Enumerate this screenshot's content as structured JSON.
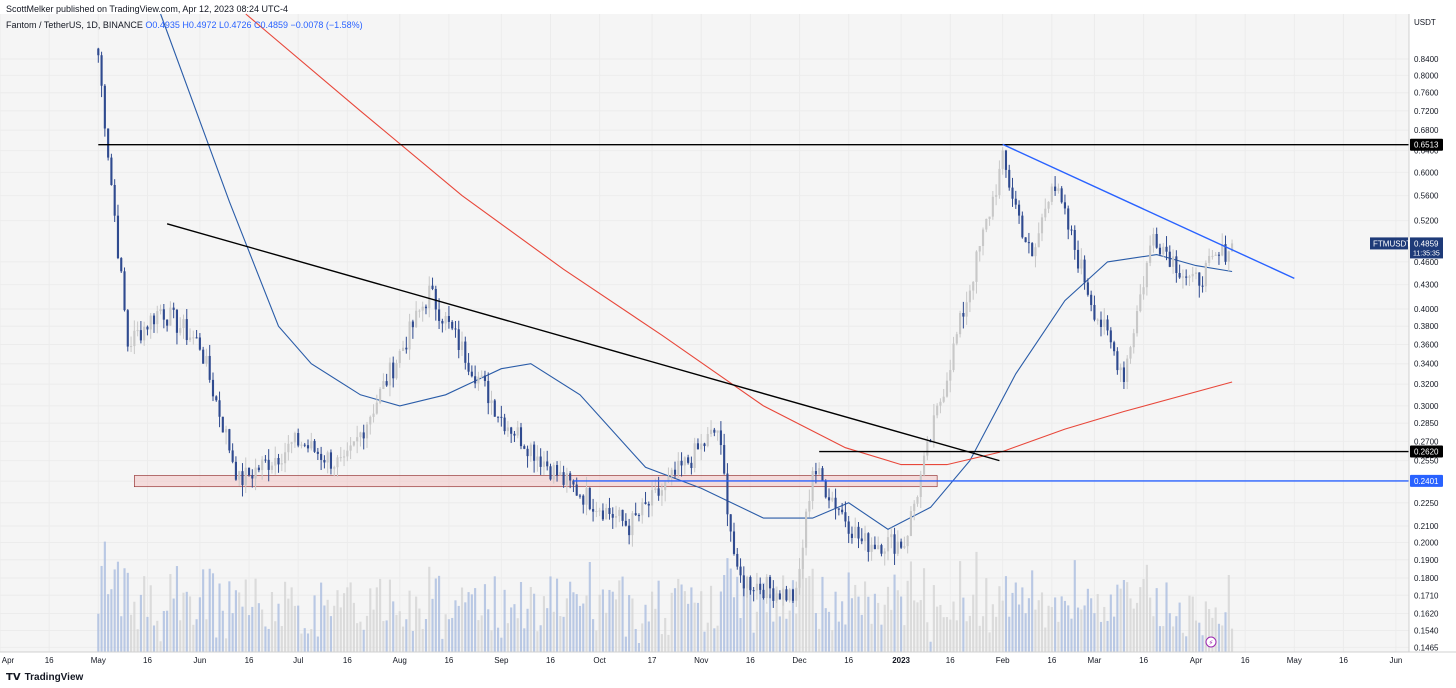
{
  "header": {
    "publisher": "ScottMelker published on TradingView.com, Apr 12, 2023 08:24 UTC-4",
    "symbol": "Fantom / TetherUS, 1D, BINANCE",
    "ohlc": "O0.4935 H0.4972 L0.4726 C0.4859",
    "change": "−0.0078 (−1.58%)"
  },
  "footer": {
    "brand": "TradingView",
    "logo": "tradingview-logo-icon"
  },
  "colors": {
    "up": "#c8c8c8",
    "down": "#2f4a8f",
    "ma_fast": "#2a5ca8",
    "ma_slow": "#e8473a",
    "trendline": "#2962ff",
    "level": "#000000",
    "support_zone": "#f3c4c4"
  },
  "chart_data": {
    "type": "candlestick",
    "symbol": "FTMUSDT",
    "y_axis_unit": "USDT",
    "y_scale": "log",
    "ylim": [
      0.1445,
      0.96
    ],
    "y_ticks": [
      "0.8400",
      "0.8000",
      "0.7600",
      "0.7200",
      "0.6800",
      "0.6400",
      "0.6000",
      "0.5600",
      "0.5200",
      "0.4600",
      "0.4300",
      "0.4000",
      "0.3800",
      "0.3600",
      "0.3400",
      "0.3200",
      "0.3000",
      "0.2850",
      "0.2700",
      "0.2550",
      "0.2400",
      "0.2250",
      "0.2100",
      "0.2000",
      "0.1900",
      "0.1800",
      "0.1710",
      "0.1620",
      "0.1540",
      "0.1465"
    ],
    "x_ticks": [
      "Apr",
      "16",
      "May",
      "16",
      "Jun",
      "16",
      "Jul",
      "16",
      "Aug",
      "16",
      "Sep",
      "16",
      "Oct",
      "17",
      "Nov",
      "16",
      "Dec",
      "16",
      "2023",
      "16",
      "Feb",
      "16",
      "Mar",
      "16",
      "Apr",
      "16",
      "May",
      "16",
      "Jun"
    ],
    "x_start": "2022-04-01",
    "x_end": "2023-06-05",
    "last_price": "0.4859",
    "countdown": "11:35:35",
    "price_tags": [
      "0.6513",
      "0.2620",
      "0.2401"
    ],
    "ohlc_monthly_anchors": [
      {
        "date": "2022-05-01",
        "close": 0.85
      },
      {
        "date": "2022-05-10",
        "close": 0.36
      },
      {
        "date": "2022-05-20",
        "close": 0.4
      },
      {
        "date": "2022-06-01",
        "close": 0.36
      },
      {
        "date": "2022-06-13",
        "close": 0.24
      },
      {
        "date": "2022-07-01",
        "close": 0.27
      },
      {
        "date": "2022-07-15",
        "close": 0.25
      },
      {
        "date": "2022-08-10",
        "close": 0.42
      },
      {
        "date": "2022-09-01",
        "close": 0.29
      },
      {
        "date": "2022-09-20",
        "close": 0.24
      },
      {
        "date": "2022-10-10",
        "close": 0.21
      },
      {
        "date": "2022-11-06",
        "close": 0.28
      },
      {
        "date": "2022-11-12",
        "close": 0.18
      },
      {
        "date": "2022-11-30",
        "close": 0.17
      },
      {
        "date": "2022-12-05",
        "close": 0.25
      },
      {
        "date": "2022-12-20",
        "close": 0.2
      },
      {
        "date": "2023-01-02",
        "close": 0.2
      },
      {
        "date": "2023-01-15",
        "close": 0.33
      },
      {
        "date": "2023-02-01",
        "close": 0.62
      },
      {
        "date": "2023-02-10",
        "close": 0.46
      },
      {
        "date": "2023-02-16",
        "close": 0.59
      },
      {
        "date": "2023-03-01",
        "close": 0.4
      },
      {
        "date": "2023-03-10",
        "close": 0.33
      },
      {
        "date": "2023-03-19",
        "close": 0.5
      },
      {
        "date": "2023-03-31",
        "close": 0.43
      },
      {
        "date": "2023-04-12",
        "close": 0.4859
      }
    ],
    "horizontal_levels": [
      {
        "price": 0.6513,
        "from": "2022-05-01",
        "to": "2023-06-05",
        "color": "#000000"
      },
      {
        "price": 0.262,
        "from": "2022-12-07",
        "to": "2023-06-05",
        "color": "#000000"
      },
      {
        "price": 0.2401,
        "from": "2022-09-23",
        "to": "2023-06-05",
        "color": "#2962ff"
      }
    ],
    "support_zone": {
      "from": "2022-05-12",
      "to": "2023-01-12",
      "low": 0.236,
      "high": 0.244
    },
    "trendlines": [
      {
        "from": {
          "date": "2022-05-22",
          "price": 0.515
        },
        "to": {
          "date": "2023-01-31",
          "price": 0.255
        },
        "color": "#000000"
      },
      {
        "from": {
          "date": "2023-02-01",
          "price": 0.652
        },
        "to": {
          "date": "2023-05-01",
          "price": 0.438
        },
        "color": "#2962ff"
      }
    ],
    "moving_averages": [
      {
        "name": "",
        "color": "#2a5ca8",
        "points": [
          {
            "date": "2022-05-20",
            "price": 0.96
          },
          {
            "date": "2022-06-10",
            "price": 0.55
          },
          {
            "date": "2022-06-25",
            "price": 0.38
          },
          {
            "date": "2022-07-05",
            "price": 0.34
          },
          {
            "date": "2022-07-20",
            "price": 0.31
          },
          {
            "date": "2022-08-01",
            "price": 0.3
          },
          {
            "date": "2022-08-15",
            "price": 0.31
          },
          {
            "date": "2022-09-01",
            "price": 0.335
          },
          {
            "date": "2022-09-10",
            "price": 0.34
          },
          {
            "date": "2022-09-25",
            "price": 0.31
          },
          {
            "date": "2022-10-15",
            "price": 0.25
          },
          {
            "date": "2022-11-01",
            "price": 0.235
          },
          {
            "date": "2022-11-20",
            "price": 0.215
          },
          {
            "date": "2022-12-05",
            "price": 0.215
          },
          {
            "date": "2022-12-16",
            "price": 0.225
          },
          {
            "date": "2022-12-28",
            "price": 0.208
          },
          {
            "date": "2023-01-10",
            "price": 0.222
          },
          {
            "date": "2023-01-22",
            "price": 0.255
          },
          {
            "date": "2023-02-05",
            "price": 0.33
          },
          {
            "date": "2023-02-20",
            "price": 0.41
          },
          {
            "date": "2023-03-05",
            "price": 0.46
          },
          {
            "date": "2023-03-20",
            "price": 0.47
          },
          {
            "date": "2023-04-01",
            "price": 0.455
          },
          {
            "date": "2023-04-12",
            "price": 0.447
          }
        ]
      },
      {
        "name": "",
        "color": "#e8473a",
        "points": [
          {
            "date": "2022-06-15",
            "price": 0.96
          },
          {
            "date": "2022-07-20",
            "price": 0.72
          },
          {
            "date": "2022-08-20",
            "price": 0.56
          },
          {
            "date": "2022-09-20",
            "price": 0.45
          },
          {
            "date": "2022-10-20",
            "price": 0.37
          },
          {
            "date": "2022-11-20",
            "price": 0.3
          },
          {
            "date": "2022-12-15",
            "price": 0.265
          },
          {
            "date": "2023-01-01",
            "price": 0.252
          },
          {
            "date": "2023-01-15",
            "price": 0.252
          },
          {
            "date": "2023-02-01",
            "price": 0.262
          },
          {
            "date": "2023-02-20",
            "price": 0.28
          },
          {
            "date": "2023-03-10",
            "price": 0.295
          },
          {
            "date": "2023-04-12",
            "price": 0.322
          }
        ]
      }
    ]
  }
}
